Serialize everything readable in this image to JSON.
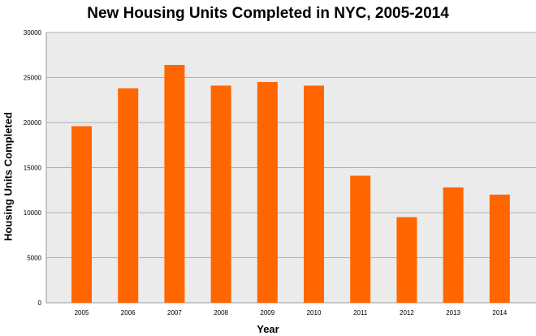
{
  "chart_data": {
    "type": "bar",
    "title": "New Housing Units Completed in NYC, 2005-2014",
    "xlabel": "Year",
    "ylabel": "Housing Units Completed",
    "categories": [
      "2005",
      "2006",
      "2007",
      "2008",
      "2009",
      "2010",
      "2011",
      "2012",
      "2013",
      "2014"
    ],
    "values": [
      19600,
      23800,
      26400,
      24100,
      24500,
      24100,
      14100,
      9500,
      12800,
      12000
    ],
    "ylim": [
      0,
      30000
    ],
    "yticks": [
      0,
      5000,
      10000,
      15000,
      20000,
      25000,
      30000
    ],
    "grid": true,
    "legend": "none",
    "colors": {
      "bar": "#ff6600",
      "background": "#ebebeb",
      "grid": "#b0b0b0"
    }
  }
}
